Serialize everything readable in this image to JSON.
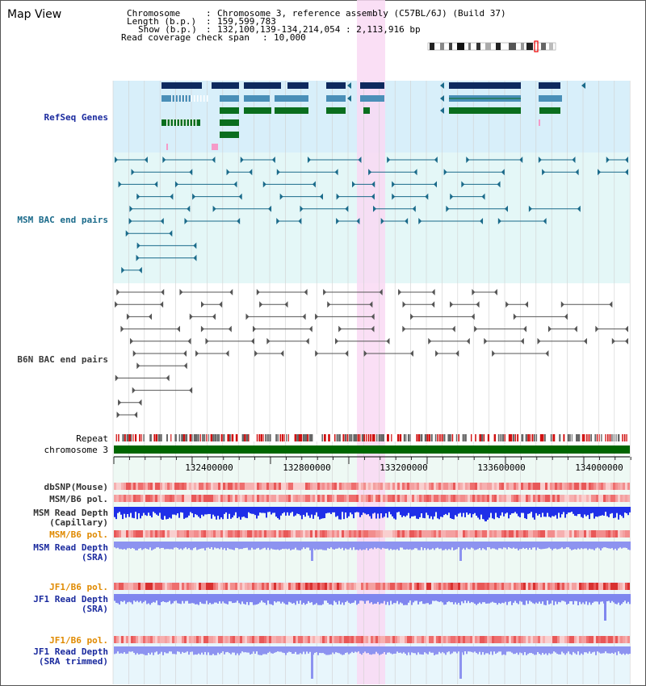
{
  "window": {
    "title": "Map View"
  },
  "info": {
    "chromosome_key": "Chromosome",
    "chromosome_value": "Chromosome 3, reference assembly (C57BL/6J) (Build 37)",
    "length_key": "Length (b.p.)",
    "length_value": "159,599,783",
    "show_key": "Show (b.p.)",
    "show_value": "132,100,139-134,214,054 : 2,113,916 bp",
    "coverage_key": "Read coverage check span",
    "coverage_value": "10,000"
  },
  "tracks": {
    "refseq": {
      "label": "RefSeq Genes",
      "color": "#1a2a9e"
    },
    "msm_bac": {
      "label": "MSM BAC end pairs",
      "color": "#1a6a8a"
    },
    "b6n_bac": {
      "label": "B6N BAC end pairs",
      "color": "#3a3a3a"
    },
    "repeat": {
      "label": "Repeat"
    },
    "chrom": {
      "label": "chromosome 3",
      "color": "#006600"
    },
    "dbsnp": {
      "label": "dbSNP(Mouse)"
    },
    "msm_b6_pol_1": {
      "label": "MSM/B6 pol."
    },
    "msm_read_cap": {
      "label1": "MSM Read Depth",
      "label2": "(Capillary)"
    },
    "msm_b6_pol_2": {
      "label": "MSM/B6 pol.",
      "color": "#e08a00"
    },
    "msm_read_sra": {
      "label1": "MSM Read Depth",
      "label2": "(SRA)",
      "color": "#1a2a9e"
    },
    "jf1_b6_pol_1": {
      "label": "JF1/B6 pol.",
      "color": "#e08a00"
    },
    "jf1_read_sra": {
      "label1": "JF1 Read Depth",
      "label2": "(SRA)",
      "color": "#1a2a9e"
    },
    "jf1_b6_pol_2": {
      "label": "JF1/B6 pol.",
      "color": "#e08a00"
    },
    "jf1_read_trim": {
      "label1": "JF1 Read Depth",
      "label2": "(SRA trimmed)",
      "color": "#1a2a9e"
    }
  },
  "axis": {
    "ticks": [
      "132400000",
      "132800000",
      "133200000",
      "133600000",
      "134000000"
    ]
  }
}
